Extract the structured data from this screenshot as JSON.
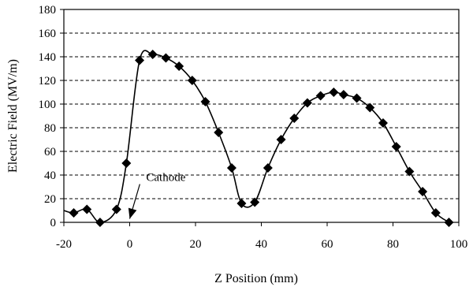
{
  "chart_data": {
    "type": "scatter",
    "xlabel": "Z Position (mm)",
    "ylabel": "Electric Field (MV/m)",
    "xlim": [
      -20,
      100
    ],
    "ylim": [
      0,
      180
    ],
    "xticks": [
      -20,
      0,
      20,
      40,
      60,
      80,
      100
    ],
    "yticks": [
      0,
      20,
      40,
      60,
      80,
      100,
      120,
      140,
      160,
      180
    ],
    "grid": "horizontal-dashed",
    "legend": "none",
    "series": [
      {
        "points": [
          [
            -17,
            8
          ],
          [
            -13,
            11
          ],
          [
            -9,
            0
          ],
          [
            -4,
            11
          ],
          [
            -1,
            50
          ],
          [
            3,
            137
          ],
          [
            7,
            142
          ],
          [
            11,
            139
          ],
          [
            15,
            132
          ],
          [
            19,
            120
          ],
          [
            23,
            102
          ],
          [
            27,
            76
          ],
          [
            31,
            46
          ],
          [
            34,
            16
          ],
          [
            38,
            17
          ],
          [
            42,
            46
          ],
          [
            46,
            70
          ],
          [
            50,
            88
          ],
          [
            54,
            101
          ],
          [
            58,
            107
          ],
          [
            62,
            110
          ],
          [
            65,
            108
          ],
          [
            69,
            105
          ],
          [
            73,
            97
          ],
          [
            77,
            84
          ],
          [
            81,
            64
          ],
          [
            85,
            43
          ],
          [
            89,
            26
          ],
          [
            93,
            8
          ],
          [
            97,
            0
          ]
        ],
        "color": "#000000",
        "marker": "diamond-marker"
      }
    ],
    "curve_extends_to": [
      -20,
      10
    ],
    "annotations": [
      {
        "text": "Cathode",
        "x": 5,
        "y": 35,
        "arrow_to": [
          0,
          3
        ]
      }
    ]
  }
}
